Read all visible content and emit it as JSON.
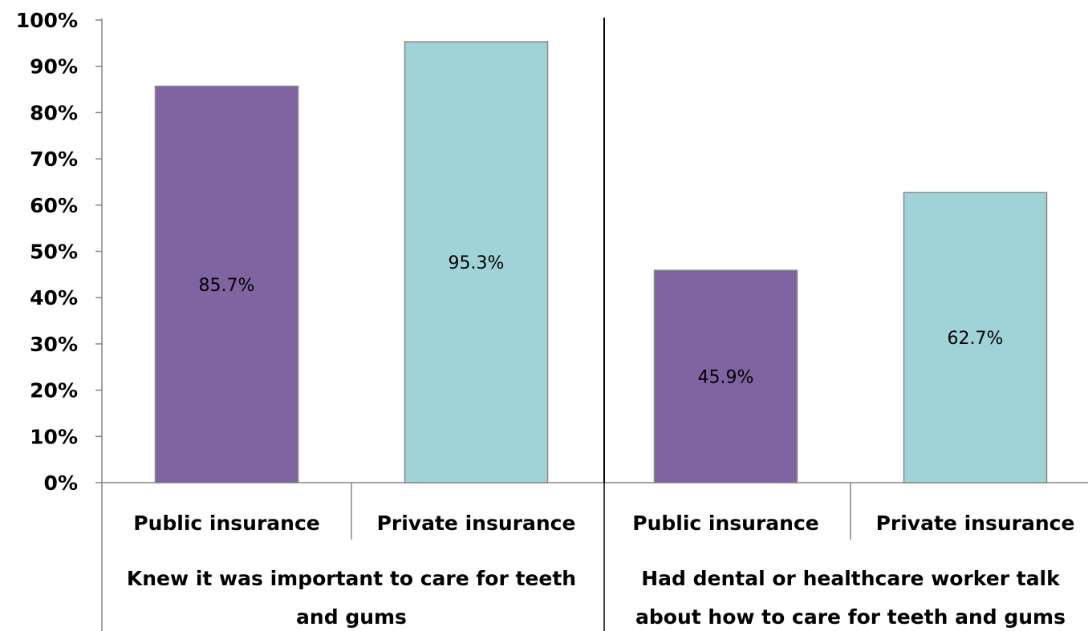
{
  "chart_data": {
    "type": "bar",
    "ylim": [
      0,
      100
    ],
    "y_ticks": [
      0,
      10,
      20,
      30,
      40,
      50,
      60,
      70,
      80,
      90,
      100
    ],
    "y_tick_labels": [
      "0%",
      "10%",
      "20%",
      "30%",
      "40%",
      "50%",
      "60%",
      "70%",
      "80%",
      "90%",
      "100%"
    ],
    "grid": false,
    "legend": "none",
    "groups": [
      {
        "label_lines": [
          "Knew it was important to care for teeth",
          "and gums"
        ],
        "bars": [
          {
            "category": "Public insurance",
            "value": 85.7,
            "label": "85.7%",
            "color": "#8064A2"
          },
          {
            "category": "Private insurance",
            "value": 95.3,
            "label": "95.3%",
            "color": "#A0D3D8"
          }
        ]
      },
      {
        "label_lines": [
          "Had dental or healthcare worker talk",
          "about how to care for teeth and gums"
        ],
        "bars": [
          {
            "category": "Public insurance",
            "value": 45.9,
            "label": "45.9%",
            "color": "#8064A2"
          },
          {
            "category": "Private insurance",
            "value": 62.7,
            "label": "62.7%",
            "color": "#A0D3D8"
          }
        ]
      }
    ]
  }
}
